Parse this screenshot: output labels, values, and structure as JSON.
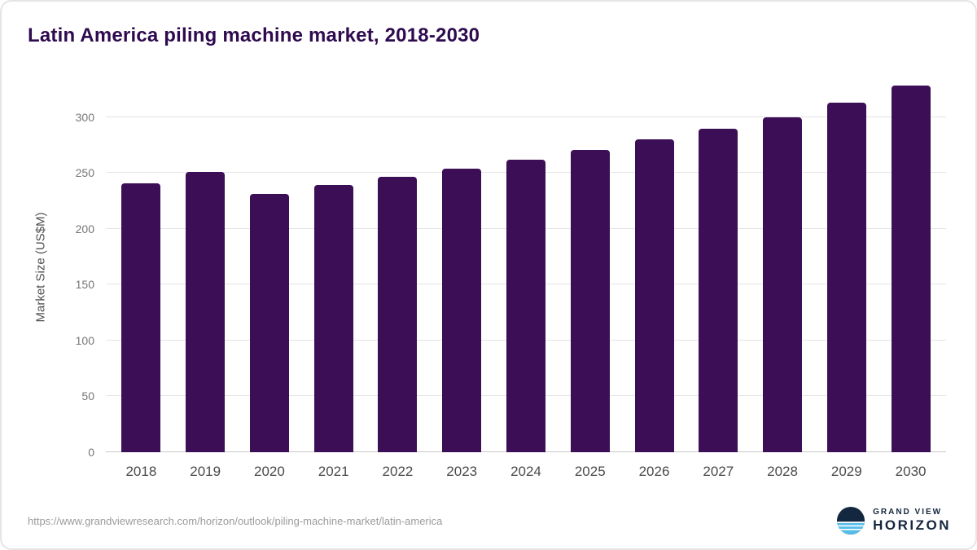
{
  "title": "Latin America piling machine market, 2018-2030",
  "chart_data": {
    "type": "bar",
    "title": "Latin America piling machine market, 2018-2030",
    "categories": [
      "2018",
      "2019",
      "2020",
      "2021",
      "2022",
      "2023",
      "2024",
      "2025",
      "2026",
      "2027",
      "2028",
      "2029",
      "2030"
    ],
    "values": [
      241,
      251,
      231,
      239,
      247,
      254,
      262,
      271,
      280,
      290,
      300,
      313,
      328
    ],
    "xlabel": "",
    "ylabel": "Market Size (US$M)",
    "ylim": [
      0,
      332
    ],
    "yticks": [
      0,
      50,
      100,
      150,
      200,
      250,
      300
    ],
    "grid": true,
    "legend": false,
    "bar_color": "#3b0e55"
  },
  "colors": {
    "bar": "#3b0e55",
    "title": "#2e0a4f",
    "grid": "#e4e4e4",
    "axis_text": "#767676"
  },
  "footer": {
    "source_url": "https://www.grandviewresearch.com/horizon/outlook/piling-machine-market/latin-america",
    "logo_top": "GRAND VIEW",
    "logo_bottom": "HORIZON"
  }
}
